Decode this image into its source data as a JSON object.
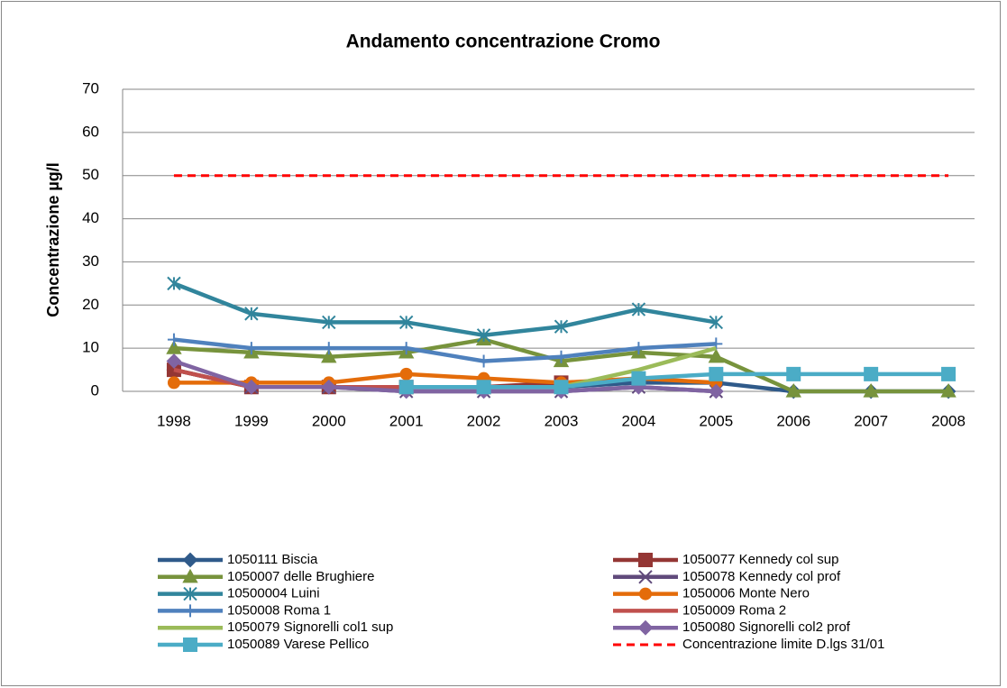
{
  "chart_data": {
    "type": "line",
    "title": "Andamento concentrazione Cromo",
    "y_label": "Concentrazione µg/l",
    "categories": [
      "1998",
      "1999",
      "2000",
      "2001",
      "2002",
      "2003",
      "2004",
      "2005",
      "2006",
      "2007",
      "2008"
    ],
    "ylim": [
      0,
      70
    ],
    "yticks": [
      0,
      10,
      20,
      30,
      40,
      50,
      60,
      70
    ],
    "grid": true,
    "legend": "bottom",
    "series": [
      {
        "name": "1050111 Biscia",
        "color": "#2f5a8a",
        "marker": "diamond",
        "values": [
          5,
          1,
          1,
          1,
          1,
          1,
          2,
          2,
          0,
          0,
          0
        ]
      },
      {
        "name": "1050077 Kennedy col sup",
        "color": "#943634",
        "marker": "square",
        "values": [
          5,
          1,
          1,
          1,
          1,
          2,
          null,
          null,
          null,
          null,
          null
        ]
      },
      {
        "name": "1050007 delle Brughiere",
        "color": "#77933c",
        "marker": "triangle",
        "values": [
          10,
          9,
          8,
          9,
          12,
          7,
          9,
          8,
          0,
          0,
          0
        ]
      },
      {
        "name": "1050078 Kennedy col prof",
        "color": "#604a7b",
        "marker": "x",
        "values": [
          null,
          1,
          1,
          0,
          0,
          0,
          1,
          0,
          null,
          null,
          null
        ]
      },
      {
        "name": "10500004 Luini",
        "color": "#31859c",
        "marker": "star",
        "values": [
          25,
          18,
          16,
          16,
          13,
          15,
          19,
          16,
          null,
          null,
          null
        ]
      },
      {
        "name": "1050006 Monte Nero",
        "color": "#e46c0a",
        "marker": "circle",
        "values": [
          2,
          2,
          2,
          4,
          3,
          2,
          3,
          2,
          null,
          null,
          null
        ]
      },
      {
        "name": "1050008 Roma 1",
        "color": "#4f81bd",
        "marker": "plus",
        "values": [
          12,
          10,
          10,
          10,
          7,
          8,
          10,
          11,
          null,
          null,
          null
        ]
      },
      {
        "name": "1050009 Roma 2",
        "color": "#c0504d",
        "marker": "none",
        "values": [
          5,
          1,
          1,
          1,
          1,
          1,
          null,
          null,
          null,
          null,
          null
        ]
      },
      {
        "name": "1050079 Signorelli col1 sup",
        "color": "#9bbb59",
        "marker": "none",
        "values": [
          null,
          null,
          null,
          null,
          null,
          1,
          5,
          10,
          null,
          null,
          null
        ]
      },
      {
        "name": "1050080 Signorelli col2 prof",
        "color": "#8064a2",
        "marker": "diamond",
        "values": [
          7,
          1,
          1,
          0,
          0,
          0,
          1,
          0,
          null,
          null,
          null
        ]
      },
      {
        "name": "1050089 Varese Pellico",
        "color": "#4bacc6",
        "marker": "square",
        "values": [
          null,
          null,
          null,
          1,
          1,
          1,
          3,
          4,
          4,
          4,
          4
        ]
      },
      {
        "name": "Concentrazione limite D.lgs 31/01",
        "color": "#ff0000",
        "marker": "none",
        "dash": true,
        "values": [
          50,
          50,
          50,
          50,
          50,
          50,
          50,
          50,
          50,
          50,
          50
        ]
      }
    ]
  }
}
